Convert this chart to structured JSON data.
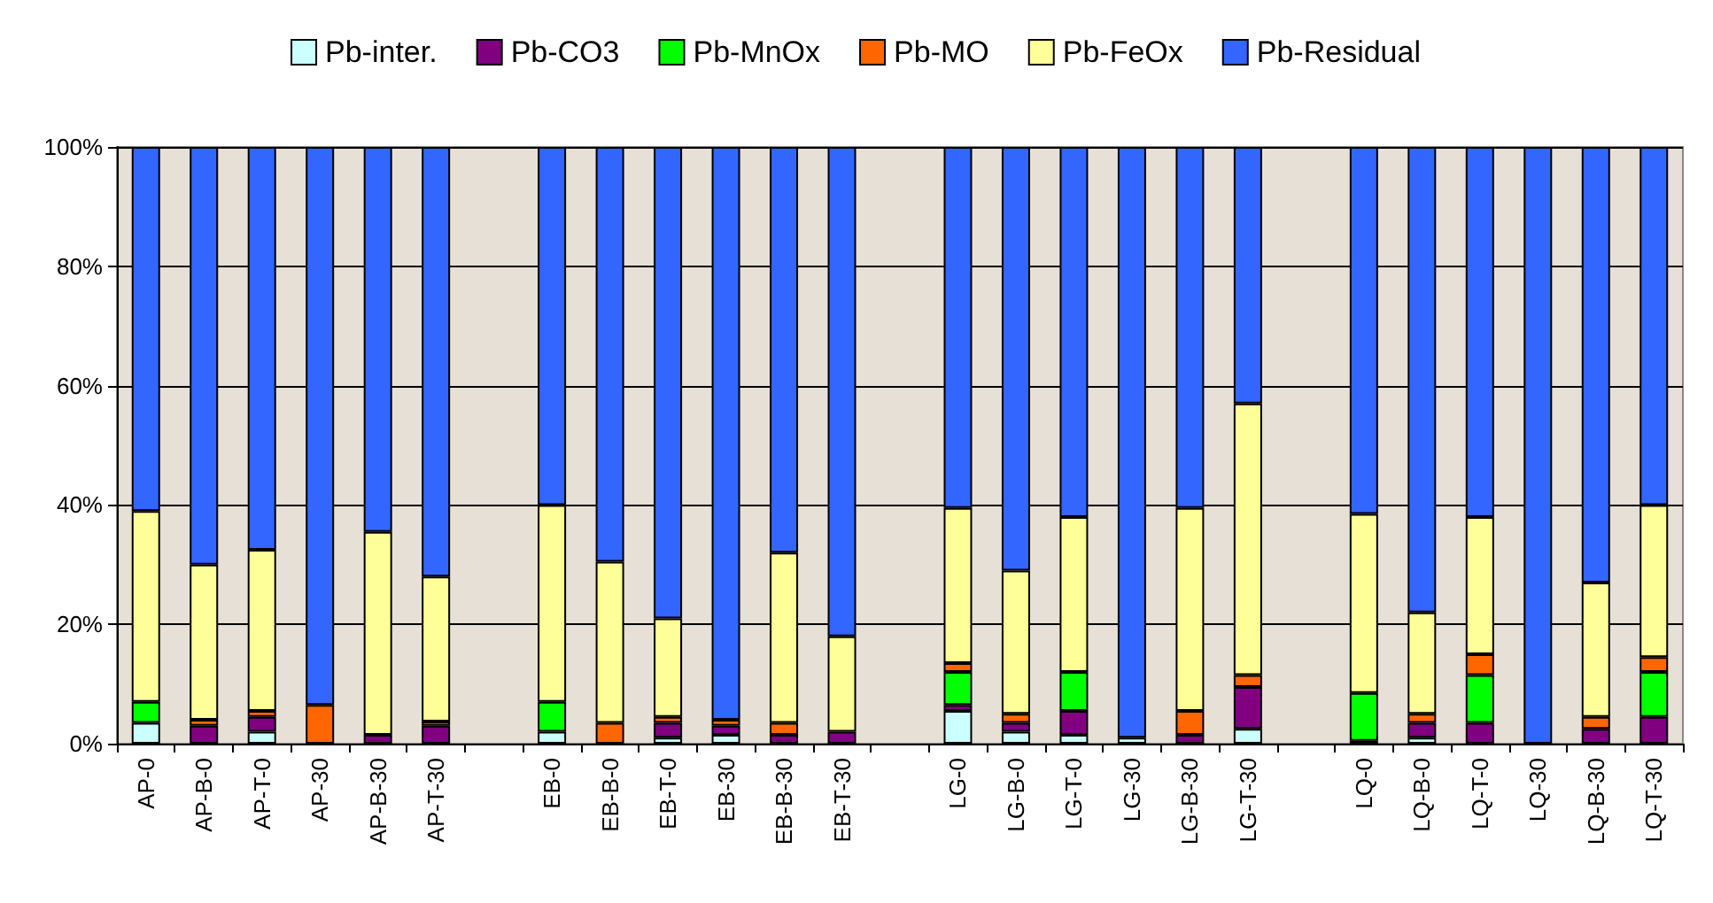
{
  "chart_data": {
    "type": "bar",
    "stacked": true,
    "legend": "top",
    "grid": "y",
    "categories": [
      "AP-0",
      "AP-B-0",
      "AP-T-0",
      "AP-30",
      "AP-B-30",
      "AP-T-30",
      null,
      "EB-0",
      "EB-B-0",
      "EB-T-0",
      "EB-30",
      "EB-B-30",
      "EB-T-30",
      null,
      "LG-0",
      "LG-B-0",
      "LG-T-0",
      "LG-30",
      "LG-B-30",
      "LG-T-30",
      null,
      "LQ-0",
      "LQ-B-0",
      "LQ-T-0",
      "LQ-30",
      "LQ-B-30",
      "LQ-T-30"
    ],
    "ylim": [
      0,
      100
    ],
    "yticks": [
      {
        "value": 0,
        "label": "0%"
      },
      {
        "value": 20,
        "label": "20%"
      },
      {
        "value": 40,
        "label": "40%"
      },
      {
        "value": 60,
        "label": "60%"
      },
      {
        "value": 80,
        "label": "80%"
      },
      {
        "value": 100,
        "label": "100%"
      }
    ],
    "series": [
      {
        "name": "Pb-inter.",
        "color": "#ccffff",
        "values": [
          3.5,
          0,
          2,
          0,
          0,
          0,
          null,
          2,
          0,
          1,
          1.5,
          0,
          0,
          null,
          5.5,
          2,
          1.5,
          1,
          0,
          2.5,
          null,
          0,
          1,
          0,
          0,
          0,
          0
        ]
      },
      {
        "name": "Pb-CO3",
        "color": "#800080",
        "values": [
          0,
          3,
          2.5,
          0,
          1.5,
          3,
          null,
          0,
          0,
          2.5,
          1.5,
          1.5,
          2,
          null,
          1,
          1.5,
          4,
          0,
          1.5,
          7,
          null,
          0.5,
          2.5,
          3.5,
          0,
          2.5,
          4.5
        ]
      },
      {
        "name": "Pb-MnOx",
        "color": "#00ff00",
        "values": [
          3.5,
          0,
          0,
          0,
          0,
          0,
          null,
          5,
          0,
          0,
          0,
          0,
          0,
          null,
          5.5,
          0,
          6.5,
          0,
          0,
          0,
          null,
          8,
          0,
          8,
          0,
          0,
          7.5
        ]
      },
      {
        "name": "Pb-MO",
        "color": "#ff6600",
        "values": [
          0,
          1,
          1,
          6.5,
          0,
          0.7,
          null,
          0,
          3.5,
          1,
          1,
          2,
          0,
          null,
          1.5,
          1.5,
          0,
          0,
          4,
          2,
          null,
          0,
          1.5,
          3.5,
          0,
          2,
          2.5
        ]
      },
      {
        "name": "Pb-FeOx",
        "color": "#ffff99",
        "values": [
          32,
          26,
          27,
          0,
          34,
          24.3,
          null,
          33,
          27,
          16.5,
          0,
          28.5,
          16,
          null,
          26,
          24,
          26,
          0,
          34,
          45.5,
          null,
          30,
          17,
          23,
          0,
          22.5,
          25.5
        ]
      },
      {
        "name": "Pb-Residual",
        "color": "#3366ff",
        "values": [
          61,
          70,
          67.5,
          93.5,
          64.5,
          72,
          null,
          60,
          69.5,
          79,
          96,
          68,
          82,
          null,
          60.5,
          71,
          62,
          99,
          60.5,
          43,
          null,
          61.5,
          78,
          62,
          100,
          73,
          60
        ]
      }
    ]
  }
}
